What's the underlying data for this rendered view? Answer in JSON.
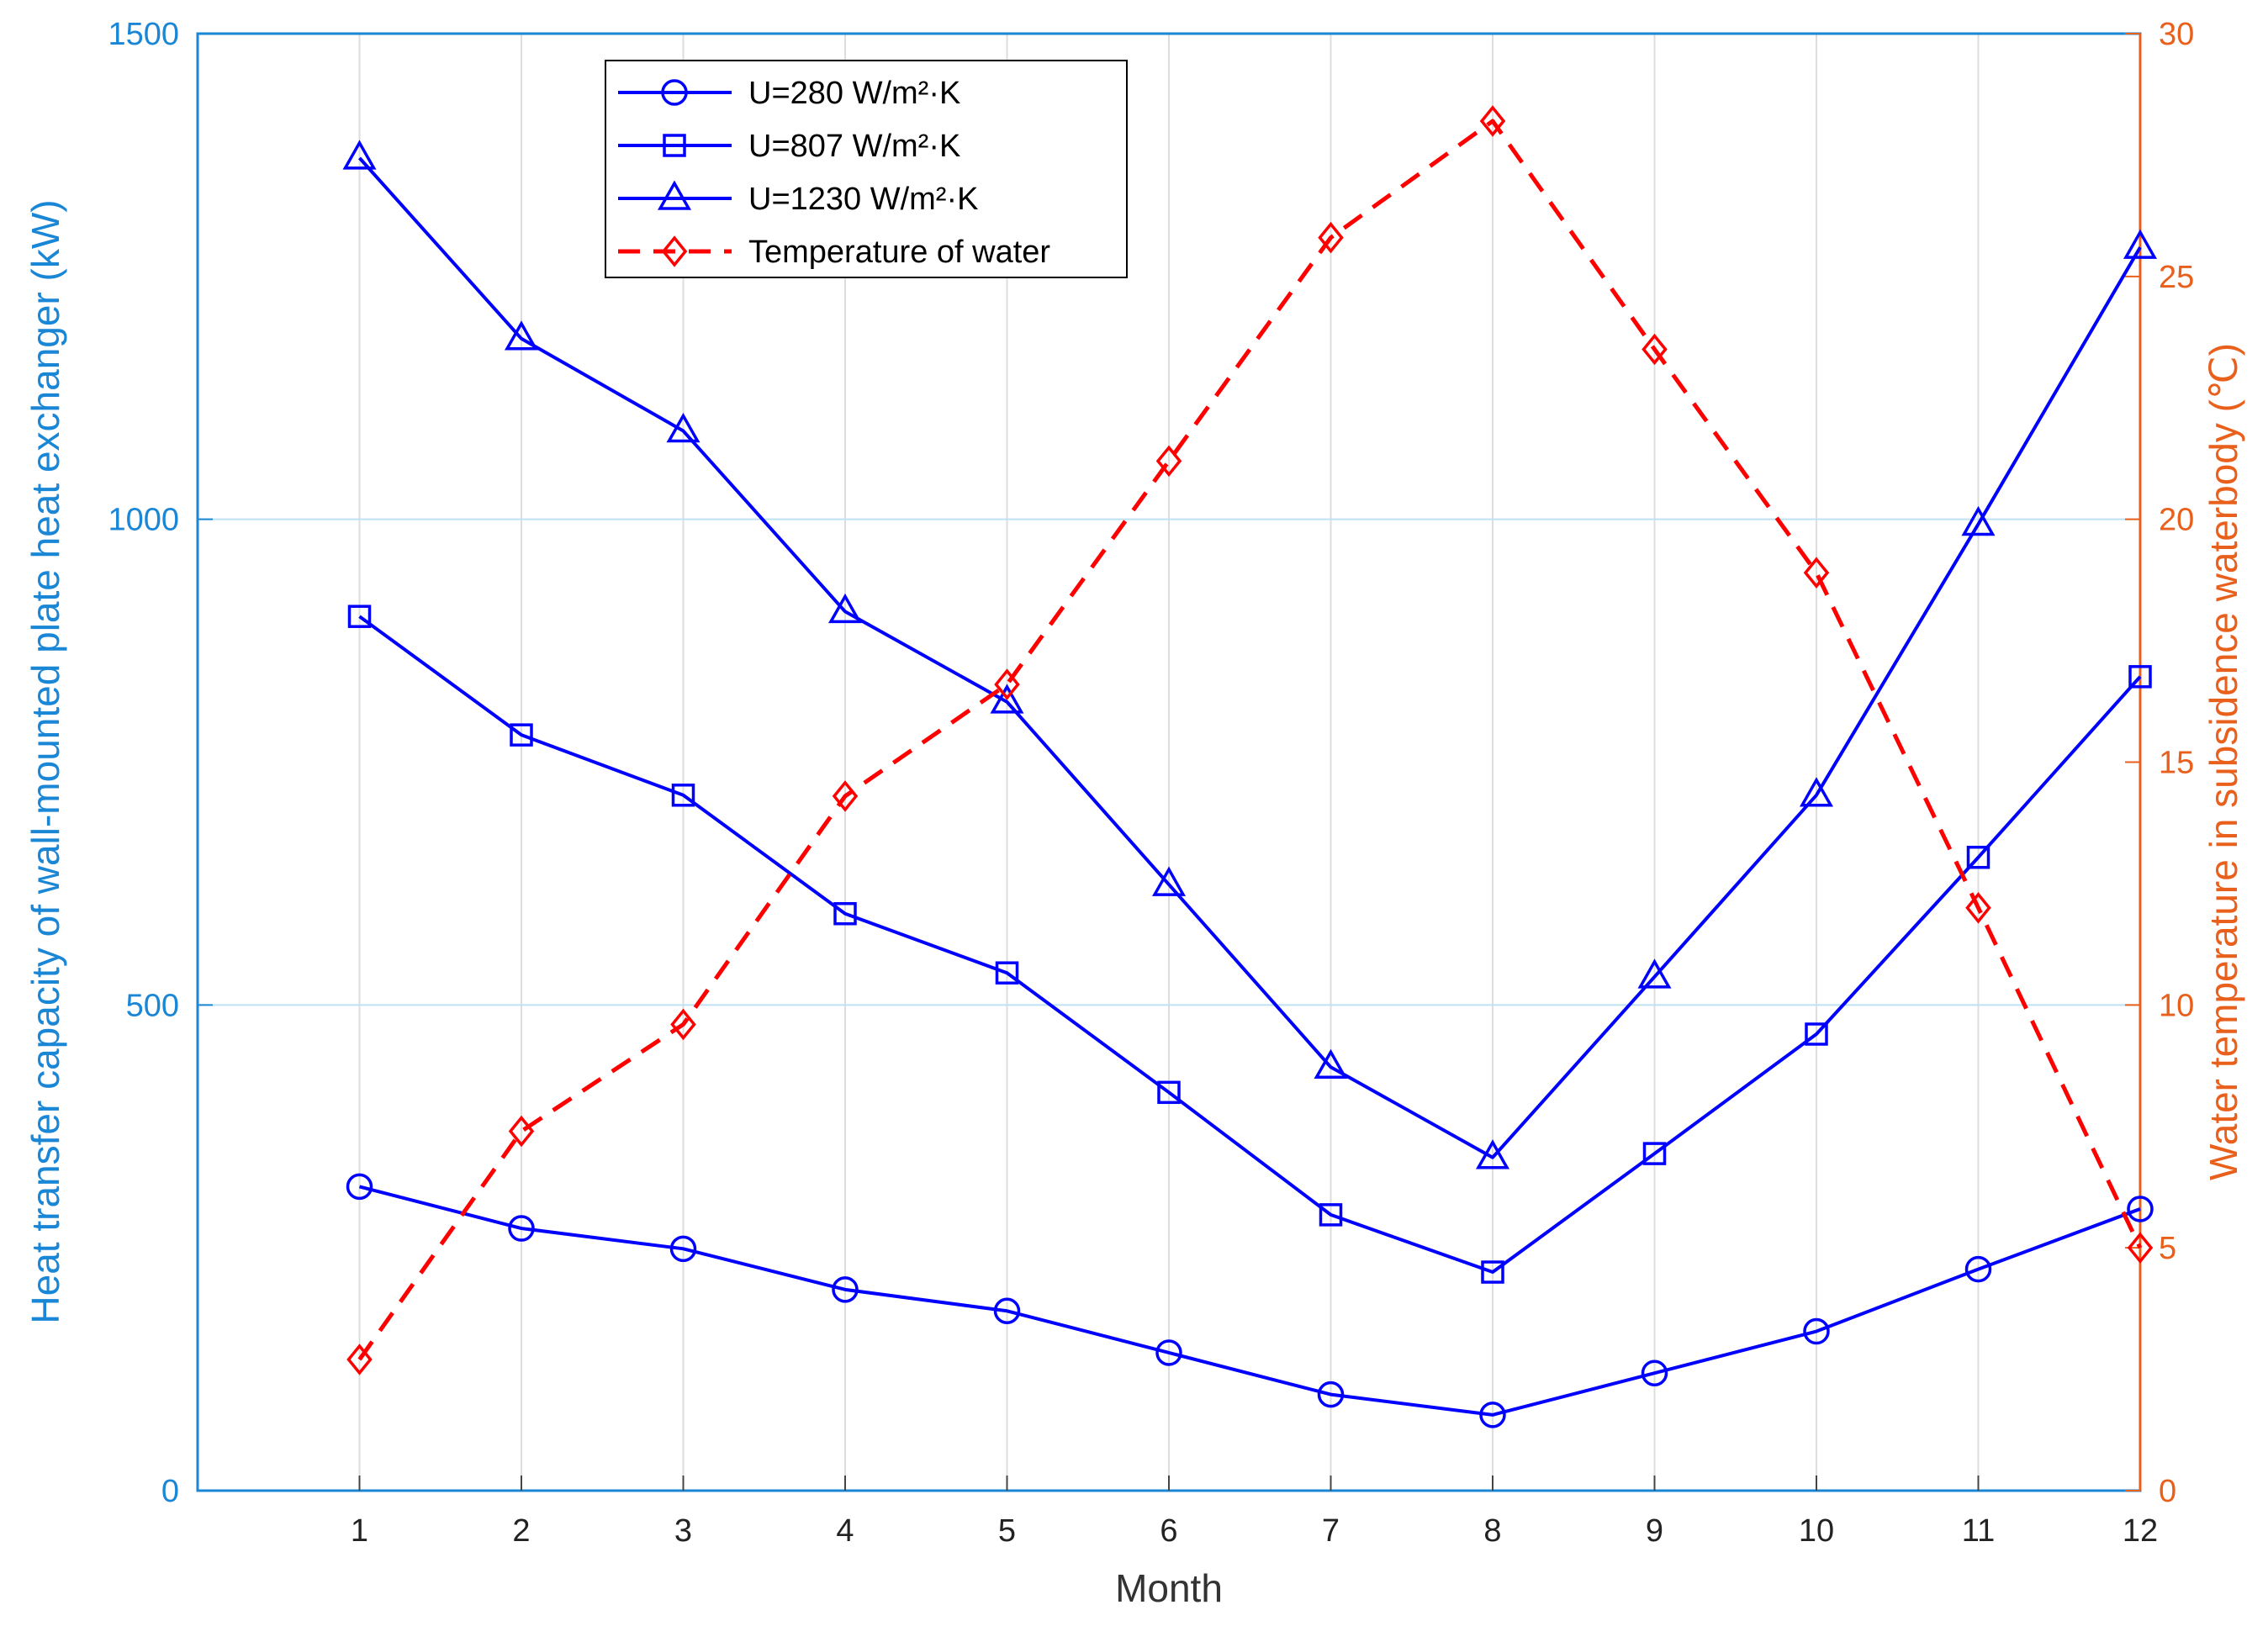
{
  "chart_data": {
    "type": "line",
    "title": "",
    "xlabel": "Month",
    "ylabel_left": "Heat transfer capacity of wall-mounted plate heat exchanger (kW)",
    "ylabel_right": "Water temperature in subsidence waterbody (℃)",
    "x": [
      1,
      2,
      3,
      4,
      5,
      6,
      7,
      8,
      9,
      10,
      11,
      12
    ],
    "x_ticks": [
      "1",
      "2",
      "3",
      "4",
      "5",
      "6",
      "7",
      "8",
      "9",
      "10",
      "11",
      "12"
    ],
    "xlim": [
      0,
      12
    ],
    "ylim_left": [
      0,
      1500
    ],
    "ylim_right": [
      0,
      30
    ],
    "yticks_left": [
      "0",
      "500",
      "1000",
      "1500"
    ],
    "yticks_right": [
      "0",
      "5",
      "10",
      "15",
      "20",
      "25",
      "30"
    ],
    "grid": "on",
    "legend_position": "top-left",
    "series": [
      {
        "name": "U=280 W/m²·K",
        "axis": "left",
        "color": "#0000ff",
        "line_style": "solid",
        "marker": "circle",
        "values": [
          313,
          270,
          249,
          207,
          185,
          142,
          99,
          78,
          121,
          164,
          228,
          290
        ]
      },
      {
        "name": "U=807 W/m²·K",
        "axis": "left",
        "color": "#0000ff",
        "line_style": "solid",
        "marker": "square",
        "values": [
          900,
          778,
          716,
          594,
          533,
          410,
          284,
          225,
          347,
          470,
          652,
          838
        ]
      },
      {
        "name": "U=1230 W/m²·K",
        "axis": "left",
        "color": "#0000ff",
        "line_style": "solid",
        "marker": "triangle",
        "values": [
          1372,
          1186,
          1091,
          905,
          812,
          624,
          436,
          343,
          529,
          716,
          995,
          1280
        ]
      },
      {
        "name": "Temperature of water",
        "axis": "right",
        "color": "#ff0000",
        "line_style": "dashed",
        "marker": "diamond",
        "values": [
          2.7,
          7.4,
          9.6,
          14.3,
          16.6,
          21.2,
          25.8,
          28.2,
          23.5,
          18.9,
          12.0,
          5.0
        ]
      }
    ]
  },
  "colors": {
    "left_axis": "#1a86d6",
    "right_axis": "#e8601c",
    "grid": "#dddddd",
    "blue_grid": "#bfe1f5"
  }
}
